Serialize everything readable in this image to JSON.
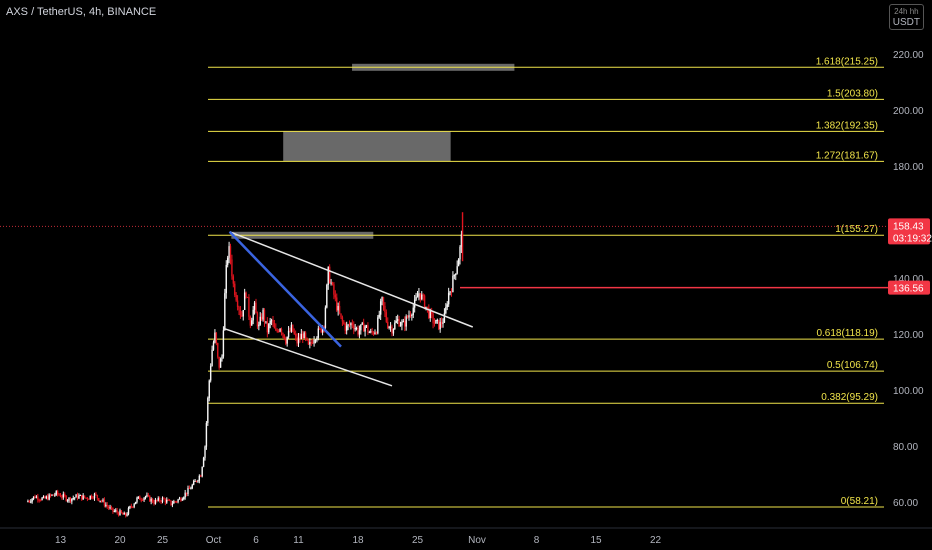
{
  "header": {
    "title": "AXS / TetherUS, 4h, BINANCE",
    "interval_label": "24h hh",
    "currency": "USDT"
  },
  "colors": {
    "background": "#000000",
    "up_candle": "#f7f7f7",
    "down_candle": "#e0141e",
    "fib_line": "#f0e44a",
    "channel_line": "#e6e6e6",
    "trend_line": "#3a64e0",
    "marker_red": "#f23645",
    "zone": "#8c8c8c"
  },
  "chart_data": {
    "type": "candlestick",
    "symbol": "AXS / TetherUS",
    "timeframe": "4h",
    "exchange": "BINANCE",
    "ylim": [
      54,
      232
    ],
    "y_ticks": [
      60,
      80,
      100,
      120,
      140,
      160,
      180,
      200,
      220
    ],
    "y_tick_labels": [
      "60.00",
      "80.00",
      "100.00",
      "120.00",
      "140.00",
      "160.00",
      "180.00",
      "200.00",
      "220.00"
    ],
    "x_ticks": [
      {
        "day": 13,
        "label": "13"
      },
      {
        "day": 20,
        "label": "20"
      },
      {
        "day": 25,
        "label": "25"
      },
      {
        "day": 31,
        "label": "Oct"
      },
      {
        "day": 36,
        "label": "6"
      },
      {
        "day": 41,
        "label": "11"
      },
      {
        "day": 48,
        "label": "18"
      },
      {
        "day": 55,
        "label": "25"
      },
      {
        "day": 62,
        "label": "Nov"
      },
      {
        "day": 69,
        "label": "8"
      },
      {
        "day": 76,
        "label": "15"
      },
      {
        "day": 83,
        "label": "22"
      }
    ],
    "price_path": [
      [
        9.0,
        60
      ],
      [
        10.0,
        62
      ],
      [
        11.0,
        61
      ],
      [
        12.5,
        63
      ],
      [
        14.0,
        61
      ],
      [
        15.0,
        62
      ],
      [
        16.0,
        61.5
      ],
      [
        17.0,
        62.5
      ],
      [
        18.0,
        60
      ],
      [
        19.0,
        57
      ],
      [
        20.0,
        56
      ],
      [
        20.6,
        55
      ],
      [
        21.2,
        58
      ],
      [
        22.0,
        61
      ],
      [
        23.0,
        62
      ],
      [
        24.0,
        60
      ],
      [
        25.0,
        61
      ],
      [
        26.0,
        59.5
      ],
      [
        27.0,
        61
      ],
      [
        28.0,
        64
      ],
      [
        28.8,
        67
      ],
      [
        29.5,
        70
      ],
      [
        30.0,
        80
      ],
      [
        30.4,
        100
      ],
      [
        30.8,
        114
      ],
      [
        31.2,
        120
      ],
      [
        31.6,
        108
      ],
      [
        32.0,
        112
      ],
      [
        32.3,
        132
      ],
      [
        32.6,
        148
      ],
      [
        32.9,
        150
      ],
      [
        33.3,
        138
      ],
      [
        33.8,
        132
      ],
      [
        34.3,
        126
      ],
      [
        34.8,
        136
      ],
      [
        35.3,
        124
      ],
      [
        35.8,
        130
      ],
      [
        36.3,
        122
      ],
      [
        36.8,
        128
      ],
      [
        37.3,
        121
      ],
      [
        37.8,
        125
      ],
      [
        38.3,
        120
      ],
      [
        38.8,
        123
      ],
      [
        39.5,
        118
      ],
      [
        40.2,
        122
      ],
      [
        40.8,
        117
      ],
      [
        41.5,
        120
      ],
      [
        42.2,
        115
      ],
      [
        42.8,
        119
      ],
      [
        43.5,
        121
      ],
      [
        44.0,
        124
      ],
      [
        44.5,
        142
      ],
      [
        45.0,
        136
      ],
      [
        45.5,
        130
      ],
      [
        46.0,
        125
      ],
      [
        46.6,
        122
      ],
      [
        47.3,
        124
      ],
      [
        48.0,
        121
      ],
      [
        48.8,
        123
      ],
      [
        49.5,
        120
      ],
      [
        50.2,
        122
      ],
      [
        50.8,
        132
      ],
      [
        51.4,
        124
      ],
      [
        52.0,
        122
      ],
      [
        52.7,
        125
      ],
      [
        53.3,
        123
      ],
      [
        54.0,
        127
      ],
      [
        54.6,
        130
      ],
      [
        55.2,
        135
      ],
      [
        55.8,
        131
      ],
      [
        56.4,
        127
      ],
      [
        57.0,
        124
      ],
      [
        57.6,
        123
      ],
      [
        58.2,
        126
      ],
      [
        58.6,
        134
      ],
      [
        59.0,
        137
      ],
      [
        59.4,
        142
      ],
      [
        59.8,
        147
      ],
      [
        60.1,
        152
      ],
      [
        60.3,
        158.43
      ]
    ],
    "fib_levels": [
      {
        "label": "1.618(215.25)",
        "value": 215.25
      },
      {
        "label": "1.5(203.80)",
        "value": 203.8
      },
      {
        "label": "1.382(192.35)",
        "value": 192.35
      },
      {
        "label": "1.272(181.67)",
        "value": 181.67
      },
      {
        "label": "1(155.27)",
        "value": 155.27
      },
      {
        "label": "0.618(118.19)",
        "value": 118.19
      },
      {
        "label": "0.5(106.74)",
        "value": 106.74
      },
      {
        "label": "0.382(95.29)",
        "value": 95.29
      },
      {
        "label": "0(58.21)",
        "value": 58.21
      }
    ],
    "zones": [
      {
        "x_start": 33.1,
        "x_end": 49.8,
        "y_low": 154,
        "y_high": 156.5
      },
      {
        "x_start": 39.2,
        "x_end": 58.9,
        "y_low": 181.67,
        "y_high": 192.35
      },
      {
        "x_start": 47.3,
        "x_end": 66.4,
        "y_low": 214,
        "y_high": 216.5
      }
    ],
    "trend_lines": [
      {
        "kind": "channel-upper",
        "x1": 32.9,
        "y1": 156.5,
        "x2": 61.5,
        "y2": 122.5
      },
      {
        "kind": "channel-lower",
        "x1": 32.2,
        "y1": 122,
        "x2": 52.0,
        "y2": 101.5
      },
      {
        "kind": "blue-trend",
        "x1": 32.9,
        "y1": 156.5,
        "x2": 46.0,
        "y2": 115.5
      }
    ],
    "horizontal_marker": {
      "value": 136.56,
      "label": "136.56",
      "x_start": 60.0
    },
    "last_price": {
      "value": 158.43,
      "label": "158.43",
      "countdown": "03:19:32"
    }
  }
}
